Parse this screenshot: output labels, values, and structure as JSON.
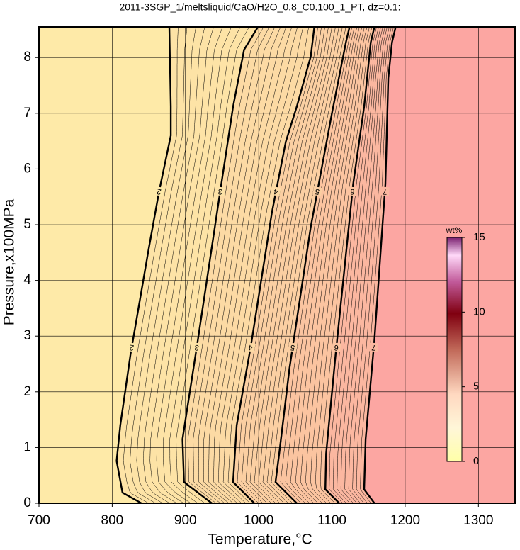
{
  "chart_data": {
    "type": "contour",
    "title": "2011-3SGP_1/meltsliquid/CaO/H2O_0.8_C0.100_1_PT, dz=0.1:",
    "x_label": "Temperature,°C",
    "y_label": "Pressure,x100MPa",
    "xlim": [
      700,
      1350
    ],
    "xticks": [
      700,
      800,
      900,
      1000,
      1100,
      1200,
      1300
    ],
    "ylim": [
      0,
      8.55
    ],
    "yticks": [
      0,
      1,
      2,
      3,
      4,
      5,
      6,
      7,
      8
    ],
    "grid": true,
    "contours": [
      {
        "level": 2,
        "temperature": [
          840,
          814,
          806,
          811,
          825,
          850,
          864,
          880,
          880,
          878
        ],
        "pressure": [
          0,
          0.19,
          0.76,
          1.4,
          2.67,
          4.58,
          5.6,
          6.6,
          7.12,
          8.55
        ]
      },
      {
        "level": 3,
        "temperature": [
          936,
          898,
          896,
          917,
          946,
          965,
          980,
          999
        ],
        "pressure": [
          0,
          0.38,
          1.15,
          2.93,
          5.47,
          7.12,
          8.14,
          8.55
        ]
      },
      {
        "level": 4,
        "temperature": [
          994,
          965,
          970,
          989,
          1018,
          1037,
          1052,
          1071,
          1076
        ],
        "pressure": [
          0,
          0.38,
          1.4,
          2.8,
          5.22,
          6.49,
          7.12,
          8.02,
          8.55
        ]
      },
      {
        "level": 5,
        "temperature": [
          1052,
          1023,
          1028,
          1042,
          1071,
          1100,
          1119,
          1124
        ],
        "pressure": [
          0,
          0.38,
          0.89,
          2.42,
          4.96,
          7.0,
          8.27,
          8.55
        ]
      },
      {
        "level": 6,
        "temperature": [
          1110,
          1091,
          1092,
          1105,
          1129,
          1144,
          1153,
          1158
        ],
        "pressure": [
          0,
          0.25,
          0.89,
          2.67,
          5.73,
          7.12,
          8.27,
          8.55
        ]
      },
      {
        "level": 7,
        "temperature": [
          1158,
          1144,
          1146,
          1158,
          1173,
          1177,
          1182,
          1187
        ],
        "pressure": [
          0,
          0.25,
          1.15,
          2.93,
          5.73,
          7.63,
          8.27,
          8.55
        ]
      }
    ],
    "band_colors": [
      "#feeaa8",
      "#fde3a6",
      "#fcdaa4",
      "#fbcfa2",
      "#fbc4a0",
      "#fbb7a0",
      "#fca6a2"
    ],
    "colorbar": {
      "label": "wt%",
      "lim": [
        0,
        15
      ],
      "ticks": [
        0,
        5,
        10,
        15
      ]
    }
  }
}
